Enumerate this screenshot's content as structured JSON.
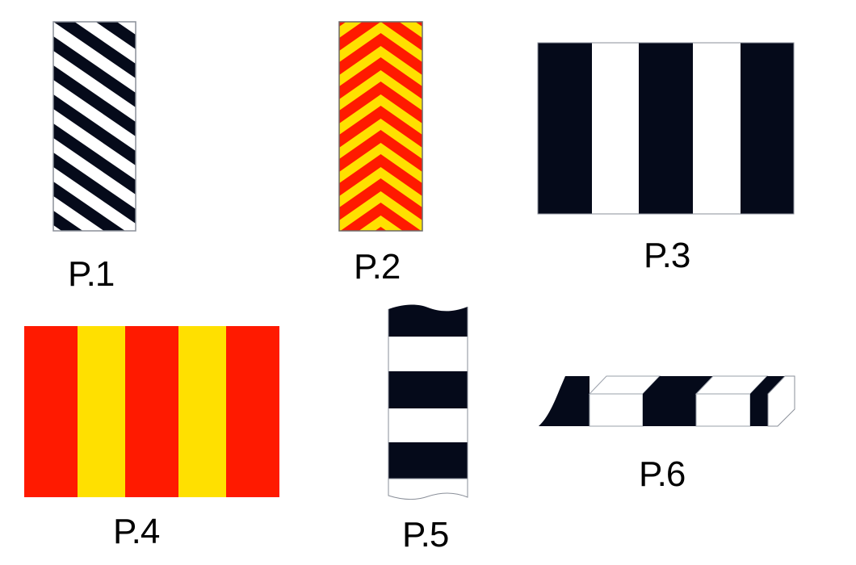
{
  "colors": {
    "dark": "#050a1a",
    "white": "#ffffff",
    "red": "#ff1a00",
    "yellow": "#ffe000",
    "border": "#8a8f99"
  },
  "panels": [
    {
      "label": "P.1",
      "pattern": "diagonal-stripes",
      "colors": [
        "dark",
        "white"
      ]
    },
    {
      "label": "P.2",
      "pattern": "chevrons",
      "colors": [
        "red",
        "yellow"
      ]
    },
    {
      "label": "P.3",
      "pattern": "vertical-bands",
      "colors": [
        "dark",
        "white"
      ]
    },
    {
      "label": "P.4",
      "pattern": "vertical-bands",
      "colors": [
        "red",
        "yellow"
      ]
    },
    {
      "label": "P.5",
      "pattern": "horizontal-bands-post",
      "colors": [
        "dark",
        "white"
      ]
    },
    {
      "label": "P.6",
      "pattern": "kerb-blocks",
      "colors": [
        "dark",
        "white"
      ]
    }
  ]
}
